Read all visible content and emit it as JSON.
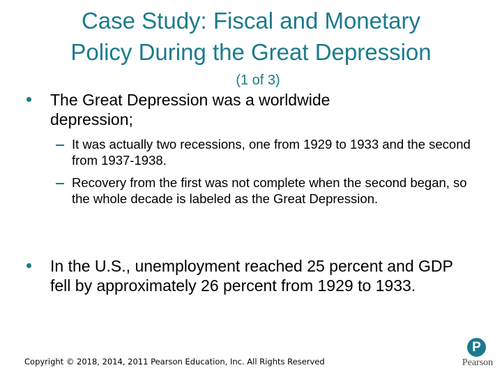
{
  "slide": {
    "title": [
      "Case Study:  Fiscal and Monetary",
      "Policy During the Great Depression"
    ],
    "subtitle": "(1 of 3)",
    "bullets": [
      {
        "text": "The Great Depression was a worldwide depression;",
        "sub": [
          "It was actually two recessions, one from 1929 to 1933 and the second from 1937-1938.",
          "Recovery from the first was not complete when the second began, so the whole decade is labeled as the Great Depression."
        ]
      },
      {
        "text": "In the U.S., unemployment reached 25 percent and GDP fell by approximately 26 percent from 1929 to 1933.",
        "sub": []
      }
    ],
    "footer": "Copyright © 2018, 2014, 2011 Pearson Education, Inc. All Rights Reserved",
    "logo": {
      "mark": "P",
      "text": "Pearson"
    }
  }
}
